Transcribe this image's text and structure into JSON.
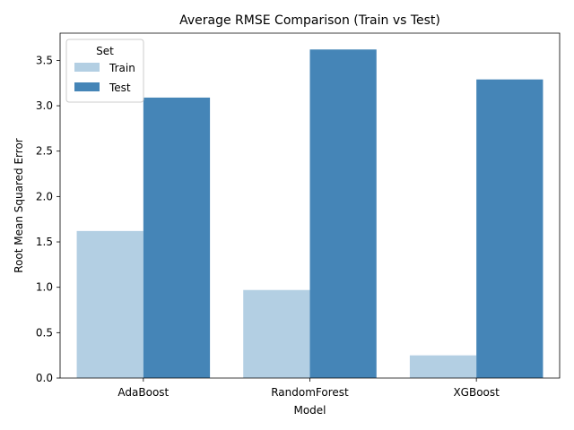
{
  "chart_data": {
    "type": "bar",
    "title": "Average RMSE Comparison (Train vs Test)",
    "xlabel": "Model",
    "ylabel": "Root Mean Squared Error",
    "categories": [
      "AdaBoost",
      "RandomForest",
      "XGBoost"
    ],
    "series": [
      {
        "name": "Train",
        "values": [
          1.62,
          0.97,
          0.25
        ],
        "color": "#b3cfe3"
      },
      {
        "name": "Test",
        "values": [
          3.09,
          3.62,
          3.29
        ],
        "color": "#4585b7"
      }
    ],
    "ylim": [
      0,
      3.8
    ],
    "yticks": [
      "0.0",
      "0.5",
      "1.0",
      "1.5",
      "2.0",
      "2.5",
      "3.0",
      "3.5"
    ],
    "grid": false,
    "legend": {
      "title": "Set",
      "placement": "top-left"
    }
  }
}
